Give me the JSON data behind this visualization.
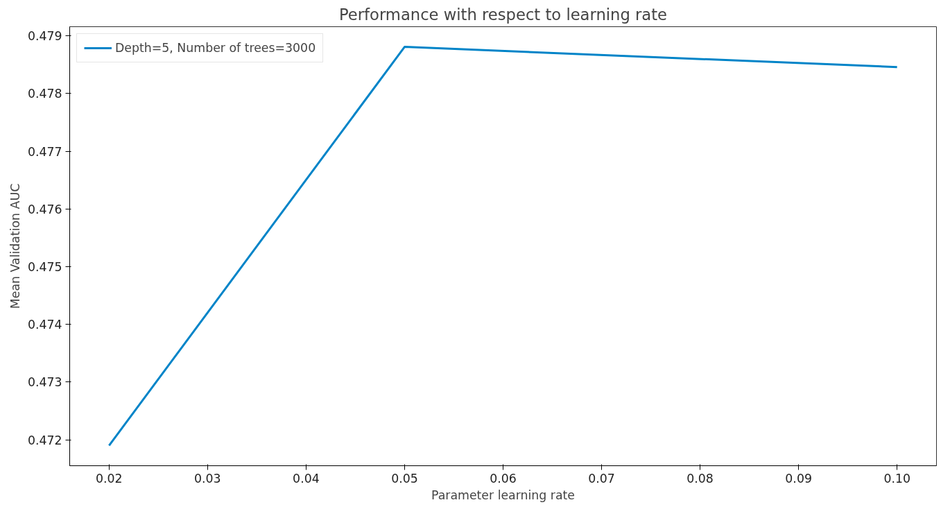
{
  "chart_data": {
    "type": "line",
    "title": "Performance with respect to learning rate",
    "xlabel": "Parameter learning rate",
    "ylabel": "Mean Validation AUC",
    "x": [
      0.02,
      0.05,
      0.1
    ],
    "series": [
      {
        "name": "Depth=5, Number of trees=3000",
        "color": "#0084c8",
        "values": [
          0.4719,
          0.47881,
          0.47846
        ]
      }
    ],
    "xlim": [
      0.016,
      0.104
    ],
    "ylim": [
      0.47155,
      0.47916
    ],
    "xticks": [
      0.02,
      0.03,
      0.04,
      0.05,
      0.06,
      0.07,
      0.08,
      0.09,
      {
        "value": 0.1,
        "label": "0.10"
      }
    ],
    "yticks": [
      0.472,
      0.473,
      0.474,
      0.475,
      0.476,
      0.477,
      0.478,
      0.479
    ],
    "grid": false,
    "legend": "top left",
    "marker": "none",
    "line_style": "solid"
  }
}
